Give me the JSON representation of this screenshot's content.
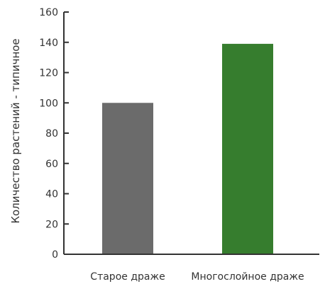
{
  "chart_data": {
    "type": "bar",
    "title": "",
    "xlabel": "",
    "ylabel": "Количество растений - типичное",
    "categories": [
      "Старое драже",
      "Многослойное драже"
    ],
    "values": [
      100,
      139
    ],
    "ylim": [
      0,
      160
    ],
    "yticks": [
      0,
      20,
      40,
      60,
      80,
      100,
      120,
      140,
      160
    ],
    "grid": false,
    "legend": "none",
    "colors": [
      "#6b6b6b",
      "#367d2e"
    ]
  }
}
